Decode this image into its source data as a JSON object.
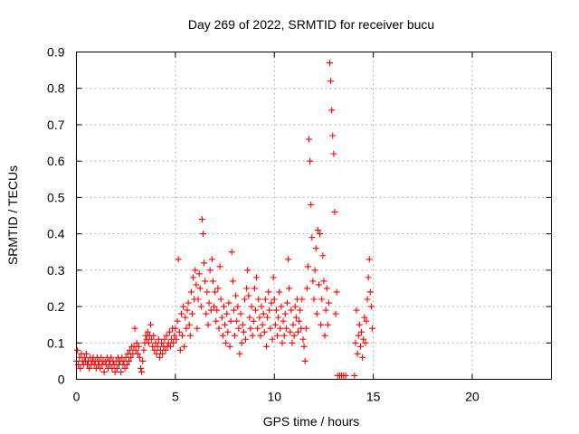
{
  "chart_data": {
    "type": "scatter",
    "title": "Day 269 of 2022, SRMTID for receiver bucu",
    "xlabel": "GPS time / hours",
    "ylabel": "SRMTID / TECUs",
    "xlim": [
      0,
      24
    ],
    "ylim": [
      0,
      0.9
    ],
    "x_ticks": [
      0,
      5,
      10,
      15,
      20
    ],
    "x_tick_labels": [
      "0",
      "5",
      "10",
      "15",
      "20"
    ],
    "y_ticks": [
      0,
      0.1,
      0.2,
      0.3,
      0.4,
      0.5,
      0.6,
      0.7,
      0.8,
      0.9
    ],
    "y_tick_labels": [
      "0",
      "0.1",
      "0.2",
      "0.3",
      "0.4",
      "0.5",
      "0.6",
      "0.7",
      "0.8",
      "0.9"
    ],
    "grid": true,
    "marker": "+",
    "color": "#ff0000",
    "series": [
      {
        "name": "SRMTID",
        "points": [
          [
            0.0,
            0.05
          ],
          [
            0.05,
            0.08
          ],
          [
            0.1,
            0.04
          ],
          [
            0.15,
            0.06
          ],
          [
            0.2,
            0.03
          ],
          [
            0.25,
            0.07
          ],
          [
            0.3,
            0.05
          ],
          [
            0.35,
            0.04
          ],
          [
            0.4,
            0.06
          ],
          [
            0.45,
            0.05
          ],
          [
            0.5,
            0.07
          ],
          [
            0.55,
            0.04
          ],
          [
            0.6,
            0.05
          ],
          [
            0.65,
            0.03
          ],
          [
            0.7,
            0.06
          ],
          [
            0.75,
            0.04
          ],
          [
            0.8,
            0.05
          ],
          [
            0.85,
            0.06
          ],
          [
            0.9,
            0.04
          ],
          [
            0.95,
            0.05
          ],
          [
            1.0,
            0.03
          ],
          [
            1.05,
            0.06
          ],
          [
            1.1,
            0.04
          ],
          [
            1.15,
            0.05
          ],
          [
            1.2,
            0.03
          ],
          [
            1.25,
            0.06
          ],
          [
            1.3,
            0.04
          ],
          [
            1.35,
            0.05
          ],
          [
            1.4,
            0.02
          ],
          [
            1.45,
            0.05
          ],
          [
            1.5,
            0.04
          ],
          [
            1.55,
            0.06
          ],
          [
            1.6,
            0.03
          ],
          [
            1.65,
            0.05
          ],
          [
            1.7,
            0.04
          ],
          [
            1.75,
            0.06
          ],
          [
            1.8,
            0.03
          ],
          [
            1.85,
            0.05
          ],
          [
            1.9,
            0.04
          ],
          [
            1.95,
            0.02
          ],
          [
            2.0,
            0.05
          ],
          [
            2.05,
            0.03
          ],
          [
            2.1,
            0.06
          ],
          [
            2.15,
            0.04
          ],
          [
            2.2,
            0.05
          ],
          [
            2.25,
            0.02
          ],
          [
            2.3,
            0.06
          ],
          [
            2.35,
            0.04
          ],
          [
            2.4,
            0.05
          ],
          [
            2.45,
            0.03
          ],
          [
            2.5,
            0.06
          ],
          [
            2.55,
            0.04
          ],
          [
            2.6,
            0.07
          ],
          [
            2.65,
            0.05
          ],
          [
            2.7,
            0.08
          ],
          [
            2.75,
            0.06
          ],
          [
            2.8,
            0.09
          ],
          [
            2.85,
            0.07
          ],
          [
            2.9,
            0.09
          ],
          [
            2.95,
            0.14
          ],
          [
            3.0,
            0.08
          ],
          [
            3.05,
            0.1
          ],
          [
            3.1,
            0.07
          ],
          [
            3.15,
            0.09
          ],
          [
            3.2,
            0.06
          ],
          [
            3.25,
            0.03
          ],
          [
            3.3,
            0.02
          ],
          [
            3.35,
            0.05
          ],
          [
            3.4,
            0.08
          ],
          [
            3.45,
            0.1
          ],
          [
            3.5,
            0.12
          ],
          [
            3.55,
            0.11
          ],
          [
            3.6,
            0.13
          ],
          [
            3.65,
            0.1
          ],
          [
            3.7,
            0.12
          ],
          [
            3.75,
            0.15
          ],
          [
            3.8,
            0.11
          ],
          [
            3.85,
            0.09
          ],
          [
            3.9,
            0.12
          ],
          [
            3.95,
            0.08
          ],
          [
            4.0,
            0.1
          ],
          [
            4.05,
            0.07
          ],
          [
            4.1,
            0.09
          ],
          [
            4.15,
            0.11
          ],
          [
            4.2,
            0.06
          ],
          [
            4.25,
            0.08
          ],
          [
            4.3,
            0.1
          ],
          [
            4.35,
            0.07
          ],
          [
            4.4,
            0.09
          ],
          [
            4.45,
            0.11
          ],
          [
            4.5,
            0.08
          ],
          [
            4.55,
            0.12
          ],
          [
            4.6,
            0.09
          ],
          [
            4.65,
            0.1
          ],
          [
            4.7,
            0.13
          ],
          [
            4.75,
            0.09
          ],
          [
            4.8,
            0.11
          ],
          [
            4.85,
            0.14
          ],
          [
            4.9,
            0.1
          ],
          [
            4.95,
            0.12
          ],
          [
            5.0,
            0.14
          ],
          [
            5.05,
            0.11
          ],
          [
            5.1,
            0.16
          ],
          [
            5.15,
            0.33
          ],
          [
            5.2,
            0.13
          ],
          [
            5.25,
            0.08
          ],
          [
            5.3,
            0.18
          ],
          [
            5.35,
            0.12
          ],
          [
            5.4,
            0.2
          ],
          [
            5.45,
            0.09
          ],
          [
            5.5,
            0.17
          ],
          [
            5.55,
            0.14
          ],
          [
            5.6,
            0.19
          ],
          [
            5.65,
            0.21
          ],
          [
            5.7,
            0.15
          ],
          [
            5.75,
            0.12
          ],
          [
            5.8,
            0.24
          ],
          [
            5.85,
            0.18
          ],
          [
            5.9,
            0.28
          ],
          [
            5.95,
            0.22
          ],
          [
            6.0,
            0.3
          ],
          [
            6.05,
            0.26
          ],
          [
            6.1,
            0.14
          ],
          [
            6.15,
            0.22
          ],
          [
            6.2,
            0.29
          ],
          [
            6.25,
            0.25
          ],
          [
            6.3,
            0.2
          ],
          [
            6.35,
            0.44
          ],
          [
            6.4,
            0.4
          ],
          [
            6.45,
            0.32
          ],
          [
            6.5,
            0.27
          ],
          [
            6.55,
            0.18
          ],
          [
            6.6,
            0.24
          ],
          [
            6.65,
            0.15
          ],
          [
            6.7,
            0.21
          ],
          [
            6.75,
            0.3
          ],
          [
            6.8,
            0.19
          ],
          [
            6.85,
            0.33
          ],
          [
            6.9,
            0.27
          ],
          [
            6.95,
            0.2
          ],
          [
            7.0,
            0.24
          ],
          [
            7.05,
            0.16
          ],
          [
            7.1,
            0.19
          ],
          [
            7.15,
            0.25
          ],
          [
            7.2,
            0.14
          ],
          [
            7.25,
            0.31
          ],
          [
            7.3,
            0.22
          ],
          [
            7.35,
            0.17
          ],
          [
            7.4,
            0.12
          ],
          [
            7.45,
            0.2
          ],
          [
            7.5,
            0.15
          ],
          [
            7.55,
            0.1
          ],
          [
            7.6,
            0.18
          ],
          [
            7.65,
            0.13
          ],
          [
            7.7,
            0.21
          ],
          [
            7.75,
            0.09
          ],
          [
            7.8,
            0.16
          ],
          [
            7.85,
            0.35
          ],
          [
            7.9,
            0.27
          ],
          [
            7.95,
            0.19
          ],
          [
            8.0,
            0.12
          ],
          [
            8.05,
            0.23
          ],
          [
            8.1,
            0.16
          ],
          [
            8.15,
            0.2
          ],
          [
            8.2,
            0.14
          ],
          [
            8.25,
            0.07
          ],
          [
            8.3,
            0.18
          ],
          [
            8.35,
            0.1
          ],
          [
            8.4,
            0.15
          ],
          [
            8.45,
            0.13
          ],
          [
            8.5,
            0.22
          ],
          [
            8.55,
            0.11
          ],
          [
            8.6,
            0.25
          ],
          [
            8.65,
            0.3
          ],
          [
            8.7,
            0.23
          ],
          [
            8.75,
            0.17
          ],
          [
            8.8,
            0.14
          ],
          [
            8.85,
            0.2
          ],
          [
            8.9,
            0.12
          ],
          [
            8.95,
            0.16
          ],
          [
            9.0,
            0.25
          ],
          [
            9.05,
            0.19
          ],
          [
            9.1,
            0.28
          ],
          [
            9.15,
            0.14
          ],
          [
            9.2,
            0.22
          ],
          [
            9.25,
            0.17
          ],
          [
            9.3,
            0.12
          ],
          [
            9.35,
            0.2
          ],
          [
            9.4,
            0.15
          ],
          [
            9.45,
            0.18
          ],
          [
            9.5,
            0.13
          ],
          [
            9.55,
            0.22
          ],
          [
            9.6,
            0.09
          ],
          [
            9.65,
            0.17
          ],
          [
            9.7,
            0.24
          ],
          [
            9.75,
            0.19
          ],
          [
            9.8,
            0.14
          ],
          [
            9.85,
            0.21
          ],
          [
            9.9,
            0.11
          ],
          [
            9.95,
            0.28
          ],
          [
            10.0,
            0.22
          ],
          [
            10.05,
            0.15
          ],
          [
            10.1,
            0.19
          ],
          [
            10.15,
            0.12
          ],
          [
            10.2,
            0.17
          ],
          [
            10.25,
            0.24
          ],
          [
            10.3,
            0.14
          ],
          [
            10.35,
            0.2
          ],
          [
            10.4,
            0.1
          ],
          [
            10.45,
            0.16
          ],
          [
            10.5,
            0.12
          ],
          [
            10.55,
            0.18
          ],
          [
            10.6,
            0.14
          ],
          [
            10.65,
            0.21
          ],
          [
            10.7,
            0.33
          ],
          [
            10.75,
            0.25
          ],
          [
            10.8,
            0.13
          ],
          [
            10.85,
            0.19
          ],
          [
            10.9,
            0.1
          ],
          [
            10.95,
            0.15
          ],
          [
            11.0,
            0.12
          ],
          [
            11.05,
            0.2
          ],
          [
            11.1,
            0.17
          ],
          [
            11.15,
            0.22
          ],
          [
            11.2,
            0.13
          ],
          [
            11.25,
            0.16
          ],
          [
            11.3,
            0.19
          ],
          [
            11.35,
            0.14
          ],
          [
            11.4,
            0.22
          ],
          [
            11.45,
            0.11
          ],
          [
            11.5,
            0.09
          ],
          [
            11.55,
            0.05
          ],
          [
            11.6,
            0.14
          ],
          [
            11.65,
            0.25
          ],
          [
            11.7,
            0.31
          ],
          [
            11.75,
            0.66
          ],
          [
            11.8,
            0.6
          ],
          [
            11.85,
            0.48
          ],
          [
            11.9,
            0.39
          ],
          [
            11.95,
            0.27
          ],
          [
            12.0,
            0.22
          ],
          [
            12.05,
            0.3
          ],
          [
            12.1,
            0.36
          ],
          [
            12.15,
            0.18
          ],
          [
            12.2,
            0.41
          ],
          [
            12.25,
            0.26
          ],
          [
            12.3,
            0.4
          ],
          [
            12.35,
            0.15
          ],
          [
            12.4,
            0.22
          ],
          [
            12.45,
            0.34
          ],
          [
            12.5,
            0.27
          ],
          [
            12.55,
            0.12
          ],
          [
            12.6,
            0.19
          ],
          [
            12.65,
            0.25
          ],
          [
            12.7,
            0.15
          ],
          [
            12.75,
            0.21
          ],
          [
            12.8,
            0.87
          ],
          [
            12.85,
            0.82
          ],
          [
            12.9,
            0.74
          ],
          [
            12.95,
            0.67
          ],
          [
            13.0,
            0.62
          ],
          [
            13.05,
            0.46
          ],
          [
            13.1,
            0.18
          ],
          [
            13.15,
            0.24
          ],
          [
            13.2,
            0.01
          ],
          [
            13.3,
            0.01
          ],
          [
            13.4,
            0.01
          ],
          [
            13.5,
            0.01
          ],
          [
            13.6,
            0.01
          ],
          [
            14.05,
            0.01
          ],
          [
            14.1,
            0.1
          ],
          [
            14.15,
            0.19
          ],
          [
            14.2,
            0.07
          ],
          [
            14.25,
            0.12
          ],
          [
            14.3,
            0.15
          ],
          [
            14.35,
            0.09
          ],
          [
            14.4,
            0.13
          ],
          [
            14.45,
            0.06
          ],
          [
            14.5,
            0.11
          ],
          [
            14.55,
            0.17
          ],
          [
            14.6,
            0.1
          ],
          [
            14.65,
            0.16
          ],
          [
            14.7,
            0.22
          ],
          [
            14.75,
            0.28
          ],
          [
            14.8,
            0.33
          ],
          [
            14.85,
            0.24
          ],
          [
            14.9,
            0.2
          ],
          [
            14.95,
            0.14
          ]
        ]
      }
    ]
  }
}
